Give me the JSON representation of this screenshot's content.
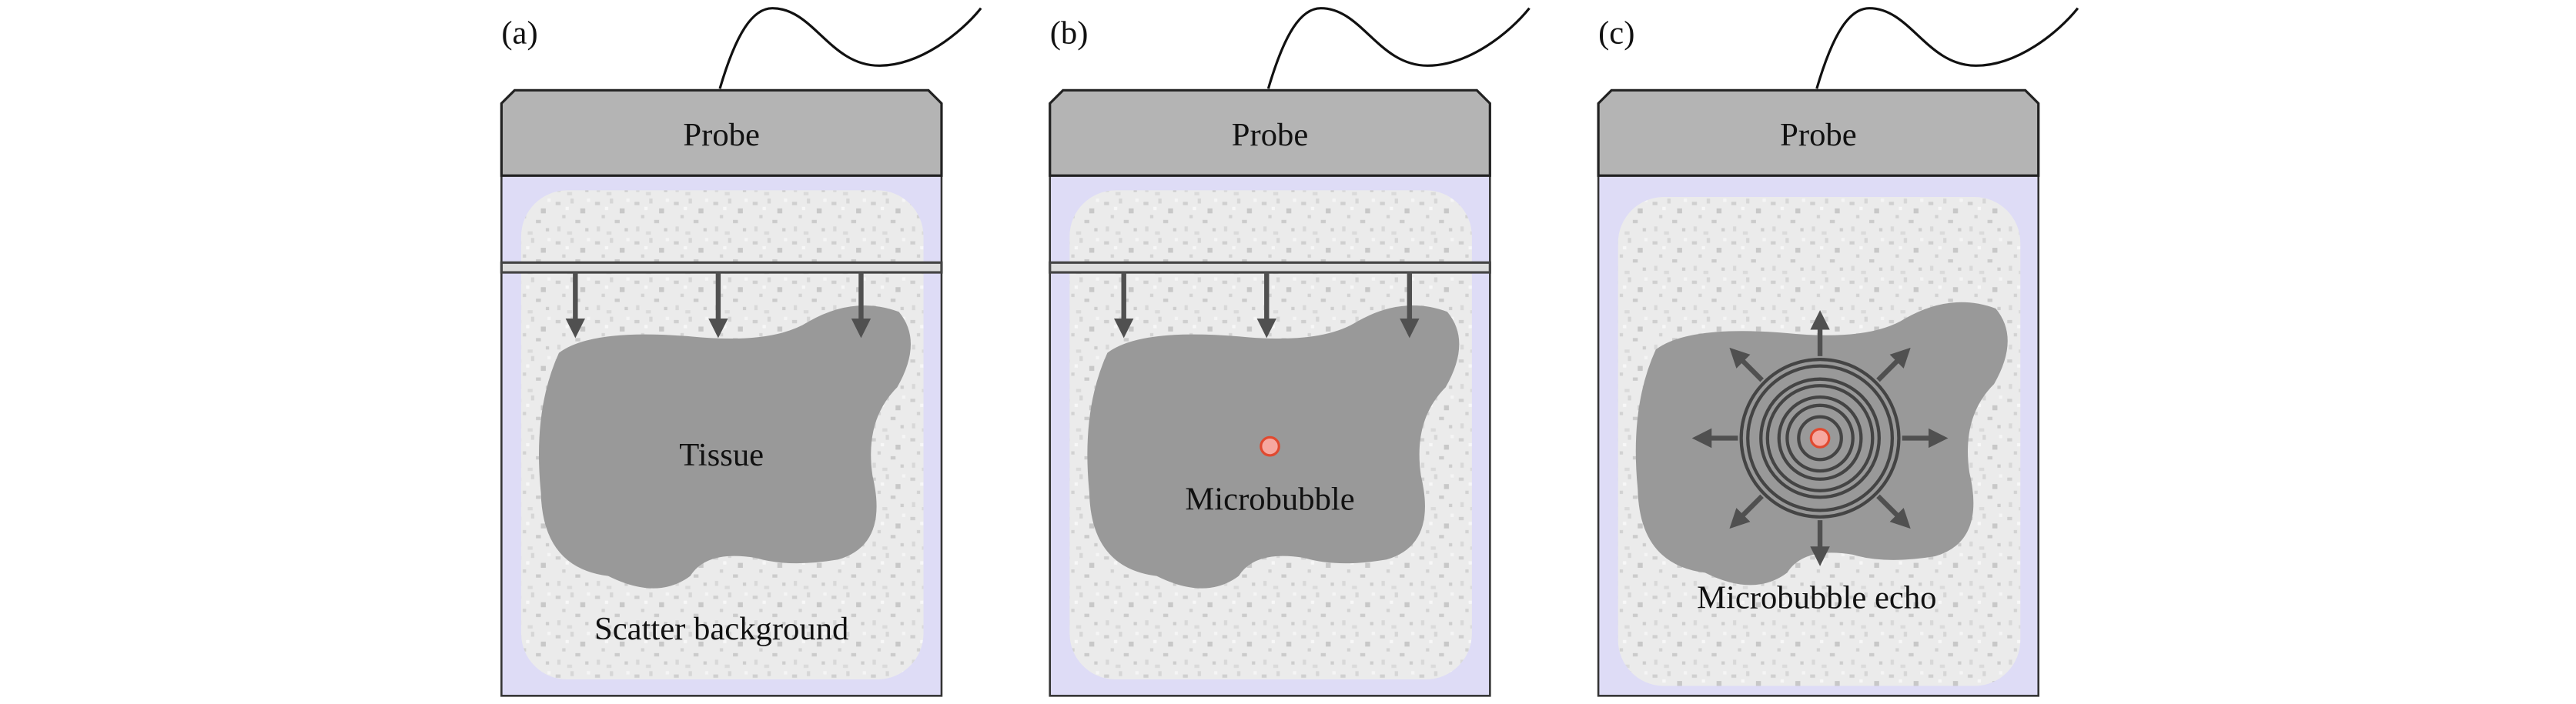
{
  "panels": [
    {
      "label": "(a)",
      "probe": "Probe",
      "texts": [
        "Tissue",
        "Scatter background"
      ]
    },
    {
      "label": "(b)",
      "probe": "Probe",
      "texts": [
        "Microbubble"
      ]
    },
    {
      "label": "(c)",
      "probe": "Probe",
      "texts": [
        "Microbubble echo"
      ]
    }
  ]
}
